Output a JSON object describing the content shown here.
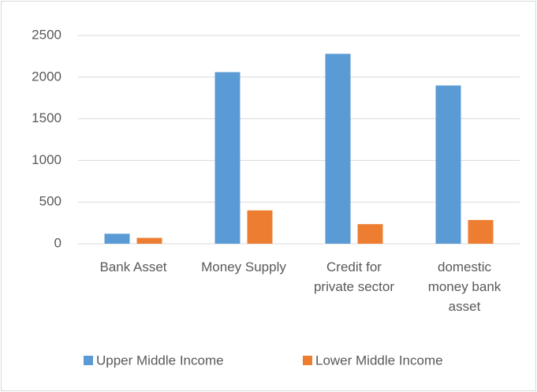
{
  "chart_data": {
    "type": "bar",
    "categories": [
      "Bank Asset",
      "Money Supply",
      "Credit for private sector",
      "domestic money bank asset"
    ],
    "series": [
      {
        "name": "Upper Middle Income",
        "color": "#5b9bd5",
        "values": [
          120,
          2060,
          2280,
          1900
        ]
      },
      {
        "name": "Lower Middle Income",
        "color": "#ed7d31",
        "values": [
          70,
          400,
          235,
          285
        ]
      }
    ],
    "ylim": [
      0,
      2500
    ],
    "yticks": [
      0,
      500,
      1000,
      1500,
      2000,
      2500
    ],
    "grid": true,
    "legend": "bottom"
  }
}
